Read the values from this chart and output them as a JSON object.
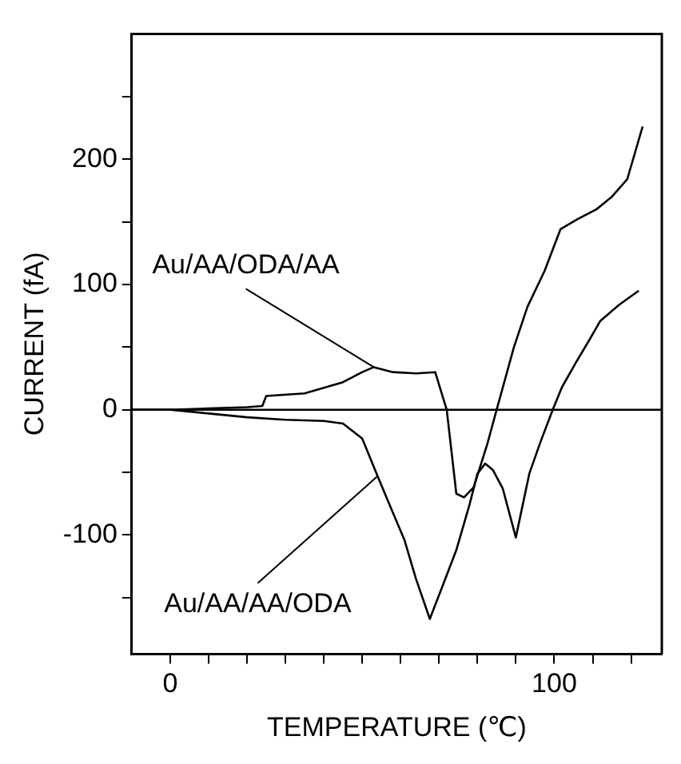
{
  "chart_data": {
    "type": "line",
    "xlabel": "TEMPERATURE (℃)",
    "ylabel": "CURRENT (fA)",
    "xlim": [
      -10,
      128
    ],
    "ylim": [
      -195,
      300
    ],
    "xticks": [
      0,
      {
        "value": 10,
        "label": null
      },
      {
        "value": 20,
        "label": null
      },
      {
        "value": 30,
        "label": null
      },
      {
        "value": 40,
        "label": null
      },
      {
        "value": 50,
        "label": null
      },
      {
        "value": 60,
        "label": null
      },
      {
        "value": 70,
        "label": null
      },
      {
        "value": 80,
        "label": null
      },
      {
        "value": 90,
        "label": null
      },
      100,
      {
        "value": 110,
        "label": null
      },
      {
        "value": 120,
        "label": null
      }
    ],
    "yticks": [
      {
        "value": -150,
        "label": null
      },
      -100,
      {
        "value": -50,
        "label": null
      },
      0,
      {
        "value": 50,
        "label": null
      },
      100,
      {
        "value": 150,
        "label": null
      },
      200,
      {
        "value": 250,
        "label": null
      }
    ],
    "marker": "none",
    "line_style": "solid",
    "series": [
      {
        "color": "#000000",
        "x": [
          -10,
          0,
          10,
          20,
          24,
          25,
          35,
          45,
          50,
          53,
          58,
          64,
          69,
          72,
          74.5,
          76.5,
          79,
          82.6,
          85,
          89.5,
          93,
          97.5,
          101.6,
          106,
          111,
          115,
          119,
          123
        ],
        "values": [
          0,
          0,
          1,
          2,
          3,
          11,
          13,
          22,
          30,
          34,
          30,
          29,
          30,
          0,
          -67,
          -70,
          -62,
          -27,
          0,
          50,
          82,
          111,
          144,
          152,
          160,
          170,
          184,
          226
        ]
      },
      {
        "color": "#000000",
        "x": [
          -10,
          0,
          10,
          20,
          30,
          40,
          45,
          50,
          54,
          57,
          61,
          64,
          67.6,
          71,
          74.5,
          78,
          80,
          82,
          84,
          86.6,
          90,
          91.5,
          93.5,
          96.5,
          99.6,
          102,
          105.7,
          109,
          112,
          117,
          122
        ],
        "values": [
          0,
          0,
          -3,
          -6,
          -8,
          -9,
          -11,
          -23,
          -53,
          -75,
          -104,
          -135,
          -167,
          -140,
          -112,
          -75,
          -51,
          -43,
          -48,
          -63,
          -102,
          -80,
          -51,
          -25,
          0,
          18,
          38,
          55,
          71,
          84,
          95
        ]
      }
    ],
    "ref_lines": [
      {
        "axis": "y",
        "value": 0,
        "color": "#000000"
      }
    ],
    "annotations": [
      {
        "text": "Au/AA/ODA/AA",
        "x": 53,
        "y": 34
      },
      {
        "text": "Au/AA/AA/ODA",
        "x": 54,
        "y": -53
      }
    ]
  }
}
